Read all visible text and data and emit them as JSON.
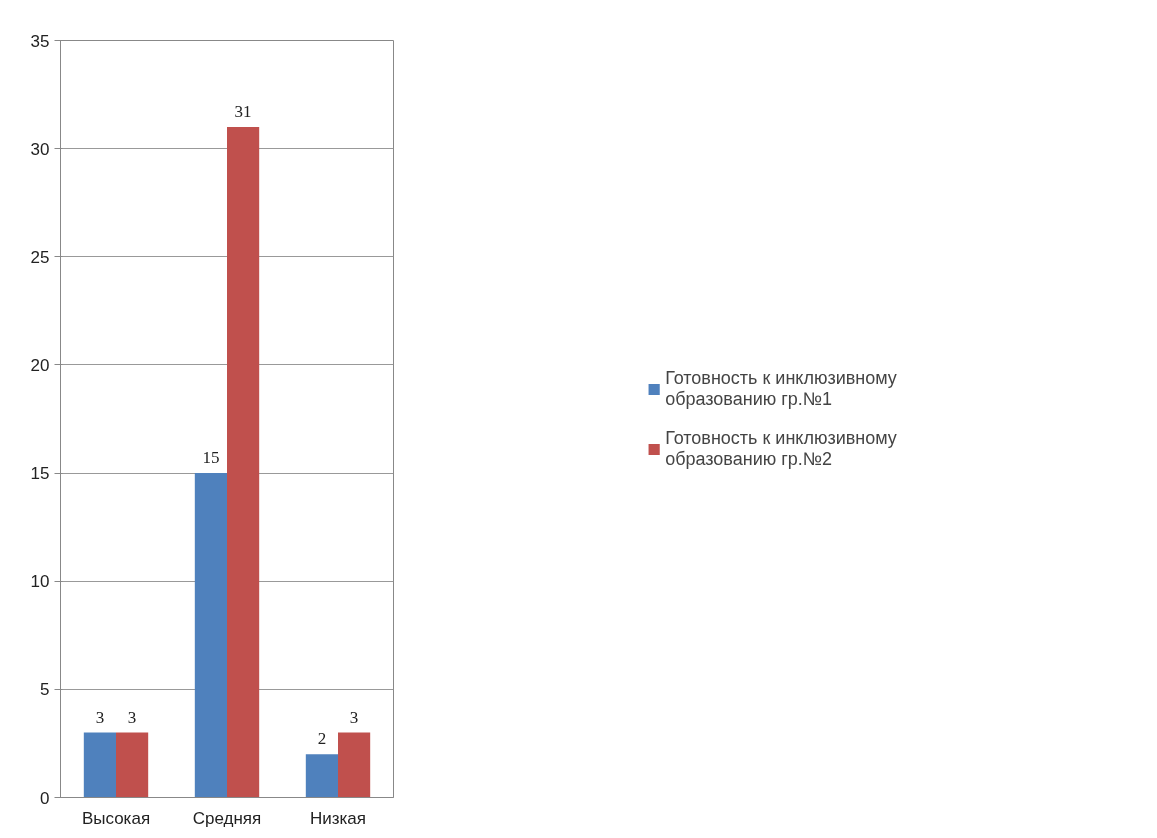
{
  "chart_data": {
    "type": "bar",
    "categories": [
      "Высокая",
      "Средняя",
      "Низкая"
    ],
    "series": [
      {
        "name": "Готовность к инклюзивному образованию гр.№1",
        "color": "#4f81bd",
        "values": [
          3,
          15,
          2
        ]
      },
      {
        "name": "Готовность к инклюзивному образованию гр.№2",
        "color": "#c0504d",
        "values": [
          3,
          31,
          3
        ]
      }
    ],
    "ylim": [
      0,
      35
    ],
    "yticks": [
      0,
      5,
      10,
      15,
      20,
      25,
      30,
      35
    ],
    "grid": "y",
    "legend": "right",
    "data_labels": true
  }
}
